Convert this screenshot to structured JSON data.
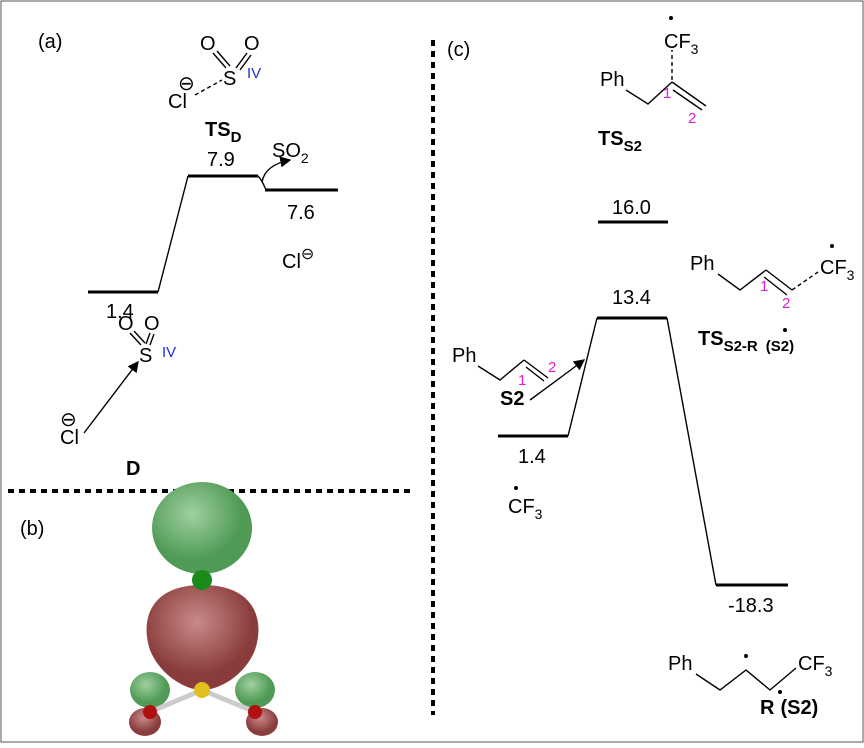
{
  "panels": {
    "a": {
      "label": "(a)",
      "levels": [
        {
          "energy": "1.4"
        },
        {
          "energy": "7.9"
        },
        {
          "energy": "7.6"
        }
      ],
      "ts_label": {
        "main": "TS",
        "sub": "D"
      },
      "reactant_label": "D",
      "so2": {
        "main": "SO",
        "sub": "2"
      },
      "chlorine": "Cl",
      "charge": "⊖",
      "oxygen": "O",
      "sulfur": "S",
      "oxidation": "IV"
    },
    "b": {
      "label": "(b)"
    },
    "c": {
      "label": "(c)",
      "levels": [
        {
          "energy": "1.4"
        },
        {
          "energy": "16.0"
        },
        {
          "energy": "13.4"
        },
        {
          "energy": "-18.3"
        }
      ],
      "phenyl": "Ph",
      "cf3": {
        "main": "CF",
        "sub": "3"
      },
      "carbon_1": "1",
      "carbon_2": "2",
      "reactant_label": "S2",
      "ts_s2_label": {
        "main": "TS",
        "sub": "S2"
      },
      "ts_r_label": {
        "main": "TS",
        "sub": "S2-R",
        "sub_end": "(S2)"
      },
      "product_label": {
        "main": "R",
        "end": "(S2)"
      }
    }
  }
}
